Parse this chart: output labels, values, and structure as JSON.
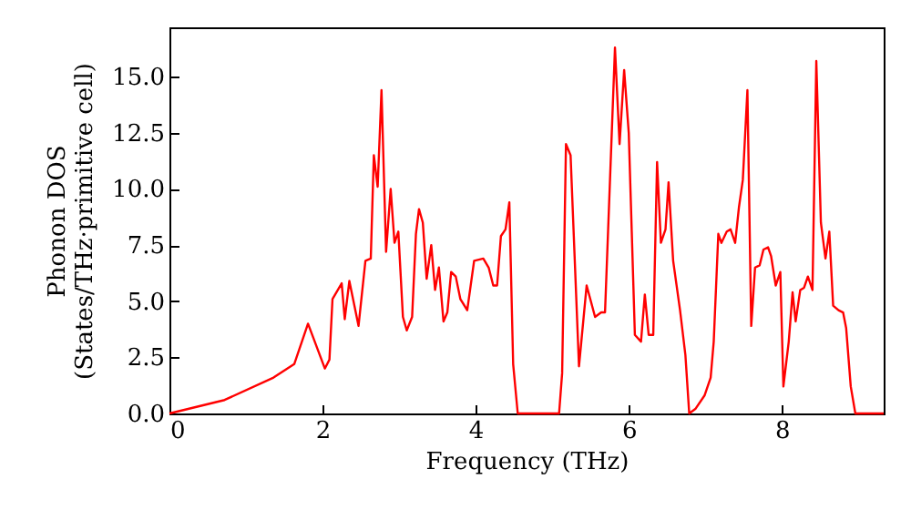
{
  "chart_data": {
    "type": "line",
    "xlabel": "Frequency (THz)",
    "ylabel": "Phonon DOS\n(States/THz·primitive cell)",
    "x": [
      0,
      0.72,
      1.36,
      1.63,
      1.81,
      2.03,
      2.09,
      2.13,
      2.25,
      2.29,
      2.35,
      2.47,
      2.56,
      2.63,
      2.67,
      2.72,
      2.77,
      2.83,
      2.89,
      2.94,
      2.99,
      3.05,
      3.1,
      3.17,
      3.22,
      3.26,
      3.31,
      3.36,
      3.42,
      3.47,
      3.52,
      3.58,
      3.63,
      3.68,
      3.74,
      3.8,
      3.89,
      3.98,
      4.1,
      4.17,
      4.23,
      4.28,
      4.33,
      4.39,
      4.44,
      4.49,
      4.55,
      5.09,
      5.13,
      5.18,
      5.24,
      5.35,
      5.45,
      5.56,
      5.64,
      5.69,
      5.82,
      5.88,
      5.94,
      6.0,
      6.08,
      6.16,
      6.21,
      6.26,
      6.32,
      6.37,
      6.42,
      6.48,
      6.52,
      6.58,
      6.67,
      6.74,
      6.79,
      6.87,
      6.99,
      7.07,
      7.11,
      7.17,
      7.21,
      7.28,
      7.33,
      7.39,
      7.44,
      7.49,
      7.55,
      7.6,
      7.65,
      7.71,
      7.76,
      7.82,
      7.86,
      7.92,
      7.98,
      8.02,
      8.09,
      8.14,
      8.18,
      8.24,
      8.29,
      8.34,
      8.4,
      8.45,
      8.51,
      8.57,
      8.62,
      8.67,
      8.74,
      8.8,
      8.84,
      8.9,
      8.96,
      9.33
    ],
    "series": [
      {
        "color": "#ff0000",
        "values": [
          0,
          0.6,
          1.6,
          2.2,
          4.0,
          2.0,
          2.4,
          5.1,
          5.8,
          4.2,
          5.9,
          3.9,
          6.8,
          6.9,
          11.5,
          10.1,
          14.4,
          7.2,
          10.0,
          7.6,
          8.1,
          4.3,
          3.7,
          4.3,
          8.0,
          9.1,
          8.5,
          6.0,
          7.5,
          5.5,
          6.5,
          4.1,
          4.5,
          6.3,
          6.1,
          5.1,
          4.6,
          6.8,
          6.9,
          6.5,
          5.7,
          5.7,
          7.9,
          8.2,
          9.4,
          2.2,
          0,
          0,
          1.8,
          12.0,
          11.5,
          2.1,
          5.7,
          4.3,
          4.5,
          4.5,
          16.3,
          12.0,
          15.3,
          12.5,
          3.5,
          3.2,
          5.3,
          3.5,
          3.5,
          11.2,
          7.6,
          8.2,
          10.3,
          6.8,
          4.6,
          2.6,
          0,
          0.2,
          0.8,
          1.6,
          3.2,
          8.0,
          7.6,
          8.1,
          8.2,
          7.6,
          9.2,
          10.4,
          14.4,
          3.9,
          6.5,
          6.6,
          7.3,
          7.4,
          7.0,
          5.7,
          6.3,
          1.2,
          3.2,
          5.4,
          4.1,
          5.5,
          5.6,
          6.1,
          5.5,
          15.7,
          8.5,
          6.9,
          8.1,
          4.8,
          4.6,
          4.5,
          3.8,
          1.2,
          0,
          0
        ]
      }
    ],
    "xlim": [
      0,
      9.33
    ],
    "xticks": [
      0,
      2,
      4,
      6,
      8
    ],
    "ylim": [
      0,
      17.2
    ],
    "yticks": [
      {
        "value": 0,
        "label": "0.0"
      },
      {
        "value": 2.5,
        "label": "2.5"
      },
      {
        "value": 5,
        "label": "5.0"
      },
      {
        "value": 7.5,
        "label": "7.5"
      },
      {
        "value": 10,
        "label": "10.0"
      },
      {
        "value": 12.5,
        "label": "12.5"
      },
      {
        "value": 15,
        "label": "15.0"
      }
    ],
    "grid": false,
    "marker": "none",
    "line_style": "solid"
  }
}
